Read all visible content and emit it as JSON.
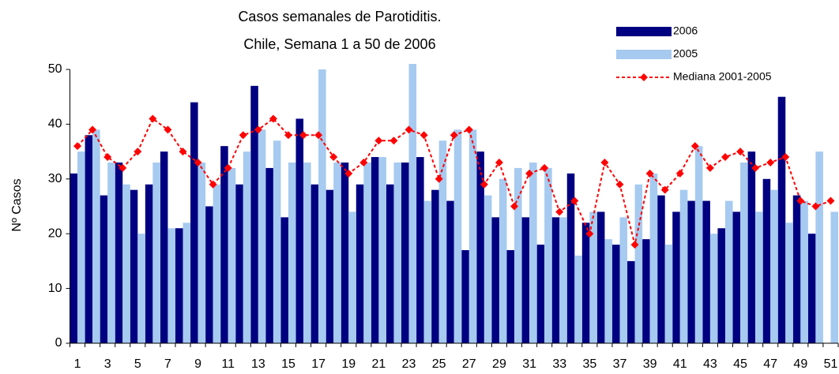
{
  "chart_data": {
    "type": "bar",
    "title": "Casos semanales de Parotiditis.",
    "subtitle": "Chile, Semana 1 a 50 de 2006",
    "y_label": "Nº Casos",
    "categories": [
      "1",
      null,
      "3",
      null,
      "5",
      null,
      "7",
      null,
      "9",
      null,
      "11",
      null,
      "13",
      null,
      "15",
      null,
      "17",
      null,
      "19",
      null,
      "21",
      null,
      "23",
      null,
      "25",
      null,
      "27",
      null,
      "29",
      null,
      "31",
      null,
      "33",
      null,
      "35",
      null,
      "37",
      null,
      "39",
      null,
      "41",
      null,
      "43",
      null,
      "45",
      null,
      "47",
      null,
      "49",
      null,
      "51"
    ],
    "series": [
      {
        "name": "2006",
        "type": "bar",
        "color": "#000080",
        "values": [
          31,
          38,
          27,
          33,
          28,
          29,
          35,
          21,
          44,
          25,
          36,
          29,
          47,
          32,
          23,
          41,
          29,
          28,
          33,
          29,
          34,
          29,
          33,
          34,
          28,
          26,
          17,
          35,
          23,
          17,
          23,
          18,
          23,
          31,
          22,
          24,
          18,
          15,
          19,
          27,
          24,
          26,
          26,
          21,
          24,
          35,
          30,
          45,
          27,
          20,
          null
        ]
      },
      {
        "name": "2005",
        "type": "bar",
        "color": "#a6caf0",
        "values": [
          35,
          39,
          33,
          29,
          20,
          33,
          21,
          22,
          33,
          29,
          32,
          35,
          39,
          37,
          33,
          33,
          50,
          33,
          24,
          33,
          34,
          33,
          51,
          26,
          37,
          39,
          39,
          27,
          30,
          32,
          33,
          32,
          23,
          16,
          24,
          19,
          23,
          29,
          31,
          18,
          28,
          36,
          20,
          26,
          33,
          24,
          28,
          22,
          26,
          35,
          24
        ]
      },
      {
        "name": "Mediana 2001-2005",
        "type": "line",
        "color": "#ff0000",
        "values": [
          36,
          39,
          34,
          32,
          35,
          41,
          39,
          35,
          33,
          29,
          32,
          38,
          39,
          41,
          38,
          38,
          38,
          34,
          31,
          33,
          37,
          37,
          39,
          38,
          30,
          38,
          39,
          29,
          33,
          25,
          31,
          32,
          24,
          26,
          20,
          33,
          29,
          18,
          31,
          28,
          31,
          36,
          32,
          34,
          35,
          32,
          33,
          34,
          26,
          25,
          26
        ]
      }
    ],
    "ylim": [
      0,
      50
    ],
    "yticks": [
      0,
      10,
      20,
      30,
      40,
      50
    ],
    "grid": false,
    "legend": "top-right"
  }
}
